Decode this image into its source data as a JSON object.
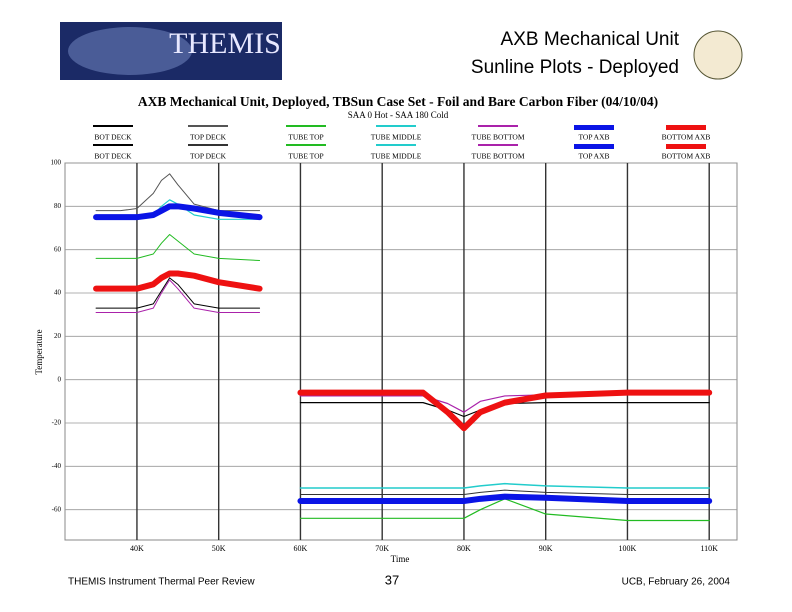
{
  "header": {
    "logo": "THEMIS",
    "title_line1": "AXB Mechanical Unit",
    "title_line2": "Sunline Plots - Deployed"
  },
  "footer": {
    "left": "THEMIS Instrument Thermal Peer Review",
    "page": "37",
    "right": "UCB, February 26, 2004"
  },
  "chart_data": {
    "type": "line",
    "title": "AXB Mechanical Unit, Deployed, TBSun Case Set - Foil and Bare Carbon Fiber (04/10/04)",
    "subtitle": "SAA 0 Hot - SAA 180 Cold",
    "x_label": "Time",
    "y_label": "Temperature",
    "xlim": [
      31200,
      113400
    ],
    "ylim": [
      -74,
      100
    ],
    "xticks": [
      {
        "value": 40000,
        "label": "40K"
      },
      {
        "value": 50000,
        "label": "50K"
      },
      {
        "value": 60000,
        "label": "60K"
      },
      {
        "value": 70000,
        "label": "70K"
      },
      {
        "value": 80000,
        "label": "80K"
      },
      {
        "value": 90000,
        "label": "90K"
      },
      {
        "value": 100000,
        "label": "100K"
      },
      {
        "value": 110000,
        "label": "110K"
      }
    ],
    "yticks": [
      100,
      80,
      60,
      40,
      20,
      0,
      -20,
      -40,
      -60
    ],
    "grid": true,
    "series": [
      {
        "name": "BOT DECK",
        "color": "#000000",
        "width": 1,
        "x": [
          35000,
          38000,
          40000,
          42000,
          43000,
          44000,
          45000,
          47000,
          50000,
          55000
        ],
        "values": [
          33,
          33,
          33,
          35,
          41,
          47,
          44,
          35,
          33,
          33
        ]
      },
      {
        "name": "TOP DECK",
        "color": "#555555",
        "width": 1,
        "x": [
          35000,
          38000,
          40000,
          42000,
          43000,
          44000,
          45000,
          47000,
          50000,
          55000
        ],
        "values": [
          78,
          78,
          79,
          86,
          92,
          95,
          90,
          81,
          78,
          78
        ]
      },
      {
        "name": "TUBE TOP",
        "color": "#22bb22",
        "width": 1,
        "x": [
          35000,
          38000,
          40000,
          42000,
          43000,
          44000,
          45000,
          47000,
          50000,
          55000
        ],
        "values": [
          56,
          56,
          56,
          58,
          63,
          67,
          64,
          58,
          56,
          55
        ]
      },
      {
        "name": "TUBE MIDDLE",
        "color": "#22cccc",
        "width": 1.2,
        "x": [
          35000,
          38000,
          40000,
          42000,
          43000,
          44000,
          45000,
          47000,
          50000,
          55000
        ],
        "values": [
          74,
          74,
          74,
          76,
          80,
          83,
          81,
          76,
          74,
          74
        ]
      },
      {
        "name": "TUBE BOTTOM",
        "color": "#aa22aa",
        "width": 1,
        "x": [
          35000,
          38000,
          40000,
          42000,
          43000,
          44000,
          45000,
          47000,
          50000,
          55000
        ],
        "values": [
          31,
          31,
          31,
          33,
          40,
          46,
          42,
          33,
          31,
          31
        ]
      },
      {
        "name": "TOP AXB",
        "color": "#0a14e6",
        "width": 6,
        "x": [
          35000,
          38000,
          40000,
          42000,
          43000,
          44000,
          45000,
          47000,
          50000,
          55000
        ],
        "values": [
          75,
          75,
          75,
          76,
          78,
          80,
          80,
          79,
          77,
          75
        ]
      },
      {
        "name": "BOTTOM AXB",
        "color": "#ee1111",
        "width": 6,
        "x": [
          35000,
          38000,
          40000,
          42000,
          43000,
          44000,
          45000,
          47000,
          50000,
          55000
        ],
        "values": [
          42,
          42,
          42,
          44,
          47,
          49,
          49,
          48,
          45,
          42
        ]
      },
      {
        "name": "BOT DECK",
        "color": "#000000",
        "width": 1.2,
        "x": [
          60000,
          65000,
          70000,
          73000,
          75000,
          78000,
          80000,
          82000,
          85000,
          90000,
          100000,
          110000
        ],
        "values": [
          -10.6,
          -10.6,
          -10.6,
          -10.6,
          -10.6,
          -14,
          -17,
          -14,
          -11,
          -10.6,
          -10.6,
          -10.6
        ]
      },
      {
        "name": "TOP DECK",
        "color": "#333333",
        "width": 1,
        "x": [
          60000,
          65000,
          70000,
          73000,
          75000,
          78000,
          80000,
          82000,
          85000,
          90000,
          100000,
          110000
        ],
        "values": [
          -53,
          -53,
          -53,
          -53,
          -53,
          -53,
          -53,
          -52,
          -51,
          -52,
          -53,
          -53
        ]
      },
      {
        "name": "TUBE TOP",
        "color": "#22bb22",
        "width": 1.2,
        "x": [
          60000,
          65000,
          70000,
          73000,
          75000,
          78000,
          80000,
          82000,
          85000,
          90000,
          100000,
          110000
        ],
        "values": [
          -64,
          -64,
          -64,
          -64,
          -64,
          -64,
          -64,
          -60,
          -55,
          -62,
          -65,
          -65
        ]
      },
      {
        "name": "TUBE MIDDLE",
        "color": "#22cccc",
        "width": 1.5,
        "x": [
          60000,
          65000,
          70000,
          73000,
          75000,
          78000,
          80000,
          82000,
          85000,
          90000,
          100000,
          110000
        ],
        "values": [
          -50,
          -50,
          -50,
          -50,
          -50,
          -50,
          -50,
          -49,
          -48,
          -49,
          -50,
          -50
        ]
      },
      {
        "name": "TUBE BOTTOM",
        "color": "#aa22aa",
        "width": 1.2,
        "x": [
          60000,
          65000,
          70000,
          73000,
          75000,
          78000,
          80000,
          82000,
          85000,
          90000,
          100000,
          110000
        ],
        "values": [
          -7.5,
          -7.5,
          -7.5,
          -7.5,
          -7.5,
          -11,
          -15,
          -10,
          -7.5,
          -7,
          -7,
          -7
        ]
      },
      {
        "name": "TOP AXB",
        "color": "#0a14e6",
        "width": 6,
        "x": [
          60000,
          65000,
          70000,
          73000,
          75000,
          78000,
          80000,
          82000,
          85000,
          90000,
          100000,
          110000
        ],
        "values": [
          -56,
          -56,
          -56,
          -56,
          -56,
          -56,
          -56,
          -55,
          -54,
          -54.5,
          -56,
          -56
        ]
      },
      {
        "name": "BOTTOM AXB",
        "color": "#ee1111",
        "width": 6,
        "x": [
          60000,
          65000,
          70000,
          73000,
          75000,
          78000,
          80000,
          82000,
          85000,
          90000,
          100000,
          110000
        ],
        "values": [
          -6,
          -6,
          -6,
          -6,
          -6,
          -15,
          -22.4,
          -15,
          -10.6,
          -7.3,
          -6,
          -6
        ]
      }
    ]
  }
}
